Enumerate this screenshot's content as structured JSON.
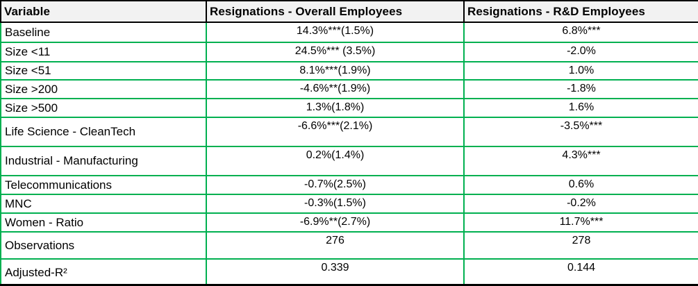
{
  "chart_data": {
    "type": "table",
    "columns": [
      "Variable",
      "Resignations - Overall Employees",
      "Resignations - R&D Employees"
    ],
    "rows": [
      [
        "Baseline",
        "14.3%***(1.5%)",
        "6.8%***"
      ],
      [
        "Size <11",
        "24.5%*** (3.5%)",
        "-2.0%"
      ],
      [
        "Size <51",
        "8.1%***(1.9%)",
        "1.0%"
      ],
      [
        "Size >200",
        "-4.6%**(1.9%)",
        "-1.8%"
      ],
      [
        "Size >500",
        "1.3%(1.8%)",
        "1.6%"
      ],
      [
        "Life Science - CleanTech",
        "-6.6%***(2.1%)",
        "-3.5%***"
      ],
      [
        "Industrial - Manufacturing",
        "0.2%(1.4%)",
        "4.3%***"
      ],
      [
        "Telecommunications",
        "-0.7%(2.5%)",
        "0.6%"
      ],
      [
        "MNC",
        "-0.3%(1.5%)",
        "-0.2%"
      ],
      [
        "Women - Ratio",
        "-6.9%**(2.7%)",
        "11.7%***"
      ],
      [
        "Observations",
        "276",
        "278"
      ],
      [
        "Adjusted-R²",
        "0.339",
        "0.144"
      ]
    ],
    "layout_hints": {
      "header_style": "bold, light-gray background, black borders",
      "body_border_color": "green",
      "value_alignment": "center-top",
      "label_alignment": "left-middle"
    }
  },
  "colors": {
    "body_border_green": "#00b050",
    "header_border_black": "#000000",
    "header_background": "#f2f2f2",
    "text": "#000000"
  }
}
